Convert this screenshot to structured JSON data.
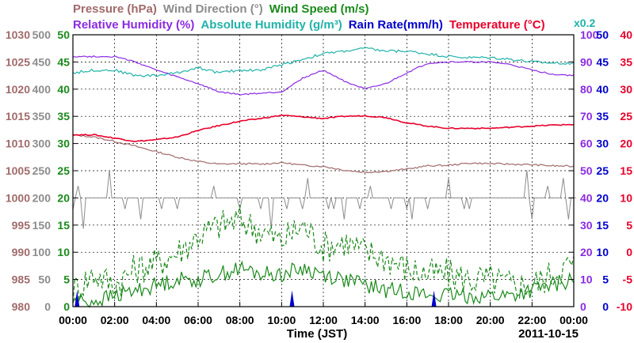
{
  "chart_data": {
    "type": "line",
    "legend": {
      "row1": [
        {
          "text": "Pressure (hPa)",
          "color": "#a06a6a"
        },
        {
          "text": "Wind Direction (°)",
          "color": "#8c8c8c"
        },
        {
          "text": "Wind Speed (m/s)",
          "color": "#1a8a1a"
        }
      ],
      "row2": [
        {
          "text": "Relative Humidity (%)",
          "color": "#8a2be2"
        },
        {
          "text": "Absolute Humidity (g/m³)",
          "color": "#20b2aa"
        },
        {
          "text": "Rain Rate(mm/h)",
          "color": "#0000cc"
        },
        {
          "text": "Temperature (°C)",
          "color": "#e8002a"
        }
      ],
      "factor_note": {
        "text": "x0.2",
        "color": "#20b2aa"
      }
    },
    "xlabel": "Time (JST)",
    "date_label": "2011-10-15",
    "x_ticks": [
      "00:00",
      "02:00",
      "04:00",
      "06:00",
      "08:00",
      "10:00",
      "12:00",
      "14:00",
      "16:00",
      "18:00",
      "20:00",
      "22:00",
      "00:00"
    ],
    "xlim_hours": [
      0,
      24
    ],
    "grid": true,
    "axes": [
      {
        "name": "pressure",
        "side": "left",
        "color": "#a06a6a",
        "ticks": [
          "980",
          "985",
          "990",
          "995",
          "1000",
          "1005",
          "1010",
          "1015",
          "1020",
          "1025",
          "1030"
        ],
        "ylim": [
          980,
          1030
        ]
      },
      {
        "name": "wind_direction",
        "side": "left",
        "color": "#8c8c8c",
        "ticks": [
          "0",
          "50",
          "100",
          "150",
          "200",
          "250",
          "300",
          "350",
          "400",
          "450",
          "500"
        ],
        "ylim": [
          0,
          500
        ]
      },
      {
        "name": "wind_speed",
        "side": "left",
        "color": "#1a8a1a",
        "ticks": [
          "0",
          "5",
          "10",
          "15",
          "20",
          "25",
          "30",
          "35",
          "40",
          "45",
          "50"
        ],
        "ylim": [
          0,
          50
        ]
      },
      {
        "name": "humidity",
        "side": "right",
        "color": "#8a2be2",
        "ticks": [
          "0",
          "10",
          "20",
          "30",
          "40",
          "50",
          "60",
          "70",
          "80",
          "90",
          "100"
        ],
        "ylim": [
          0,
          100
        ]
      },
      {
        "name": "abs_humidity_rain",
        "side": "right",
        "color": "#0000cc",
        "ticks": [
          "0",
          "5",
          "10",
          "15",
          "20",
          "25",
          "30",
          "35",
          "40",
          "45",
          "50"
        ],
        "ylim": [
          0,
          50
        ]
      },
      {
        "name": "temperature",
        "side": "right",
        "color": "#e8002a",
        "ticks": [
          "-10",
          "-5",
          "0",
          "5",
          "10",
          "15",
          "20",
          "25",
          "30",
          "35",
          "40"
        ],
        "ylim": [
          -10,
          40
        ]
      }
    ],
    "series": [
      {
        "name": "Pressure (hPa)",
        "axis": "pressure",
        "color": "#a06a6a",
        "x": [
          0,
          1,
          2,
          3,
          4,
          5,
          6,
          7,
          8,
          9,
          10,
          11,
          12,
          13,
          14,
          15,
          16,
          17,
          18,
          19,
          20,
          21,
          22,
          23,
          24
        ],
        "y": [
          1011.6,
          1011.2,
          1010.4,
          1009.5,
          1008.5,
          1007.5,
          1006.7,
          1006.2,
          1006.3,
          1006.2,
          1006.5,
          1006.0,
          1005.8,
          1005.1,
          1004.7,
          1004.9,
          1005.3,
          1005.9,
          1006.0,
          1006.4,
          1006.3,
          1006.2,
          1006.1,
          1005.9,
          1005.8
        ]
      },
      {
        "name": "Temperature (°C)",
        "axis": "temperature",
        "color": "#e8002a",
        "x": [
          0,
          1,
          2,
          3,
          4,
          5,
          6,
          7,
          8,
          9,
          10,
          11,
          12,
          13,
          14,
          15,
          16,
          17,
          18,
          19,
          20,
          21,
          22,
          23,
          24
        ],
        "y": [
          21.6,
          21.6,
          21.0,
          20.4,
          20.7,
          21.2,
          22.4,
          23.3,
          24.1,
          24.6,
          25.2,
          24.9,
          24.6,
          25.0,
          25.1,
          24.8,
          23.8,
          23.2,
          22.8,
          22.8,
          22.8,
          23.0,
          23.2,
          23.4,
          23.5
        ]
      },
      {
        "name": "Relative Humidity (%)",
        "axis": "humidity",
        "color": "#8a2be2",
        "x": [
          0,
          1,
          2,
          3,
          4,
          5,
          6,
          7,
          8,
          9,
          10,
          11,
          12,
          13,
          14,
          15,
          16,
          17,
          18,
          19,
          20,
          21,
          22,
          23,
          24
        ],
        "y": [
          92.0,
          92.0,
          92.0,
          90.0,
          87.0,
          84.5,
          82.0,
          79.0,
          78.0,
          78.5,
          79.0,
          84.0,
          87.0,
          83.0,
          80.0,
          82.0,
          86.0,
          89.5,
          90.0,
          90.0,
          90.0,
          89.0,
          87.0,
          85.5,
          85.0
        ]
      },
      {
        "name": "Absolute Humidity (g/m³)",
        "axis": "abs_humidity_rain",
        "color": "#20b2aa",
        "x": [
          0,
          1,
          2,
          3,
          4,
          5,
          6,
          7,
          8,
          9,
          10,
          11,
          12,
          13,
          14,
          15,
          16,
          17,
          18,
          19,
          20,
          21,
          22,
          23,
          24
        ],
        "y": [
          43.0,
          43.5,
          43.5,
          42.5,
          42.5,
          43.0,
          44.0,
          43.0,
          43.5,
          43.5,
          44.5,
          45.5,
          46.5,
          47.0,
          47.5,
          47.0,
          47.0,
          46.5,
          46.0,
          45.8,
          45.8,
          45.5,
          45.0,
          44.8,
          44.8
        ]
      },
      {
        "name": "Wind Direction (°)",
        "axis": "wind_direction",
        "color": "#8c8c8c",
        "baseline": 200,
        "spikes_up": [
          0.3,
          1.7,
          6.8,
          11.2,
          14.3,
          18.1,
          21.8,
          22.7,
          23.4
        ],
        "spikes_down": [
          0.1,
          0.5,
          3.2,
          9.4,
          13.0,
          16.2,
          22.0,
          23.8
        ]
      },
      {
        "name": "Wind Speed (m/s)",
        "axis": "wind_speed",
        "color": "#1a8a1a",
        "style": "dashed",
        "x": [
          0,
          1,
          2,
          3,
          4,
          5,
          6,
          7,
          8,
          9,
          10,
          11,
          12,
          13,
          14,
          15,
          16,
          17,
          18,
          19,
          20,
          21,
          22,
          23,
          24
        ],
        "y": [
          3,
          6,
          4,
          7,
          8,
          10,
          13,
          15,
          16,
          14,
          12,
          15,
          11,
          12,
          10,
          9,
          7,
          6,
          6,
          5,
          5,
          4,
          4,
          6,
          8
        ]
      },
      {
        "name": "Wind Speed (m/s)",
        "axis": "wind_speed",
        "color": "#1a8a1a",
        "style": "solid",
        "x": [
          0,
          1,
          2,
          3,
          4,
          5,
          6,
          7,
          8,
          9,
          10,
          11,
          12,
          13,
          14,
          15,
          16,
          17,
          18,
          19,
          20,
          21,
          22,
          23,
          24
        ],
        "y": [
          1,
          1,
          2,
          3,
          4,
          5,
          5,
          6,
          7,
          6,
          6,
          7,
          6,
          5,
          4,
          3,
          3,
          2,
          2,
          2,
          2,
          2,
          3,
          4,
          5
        ]
      },
      {
        "name": "Rain Rate(mm/h)",
        "axis": "abs_humidity_rain",
        "color": "#0000cc",
        "style": "bars",
        "x": [
          0.2,
          10.5,
          17.3
        ],
        "y": [
          3,
          3,
          3
        ]
      }
    ]
  }
}
